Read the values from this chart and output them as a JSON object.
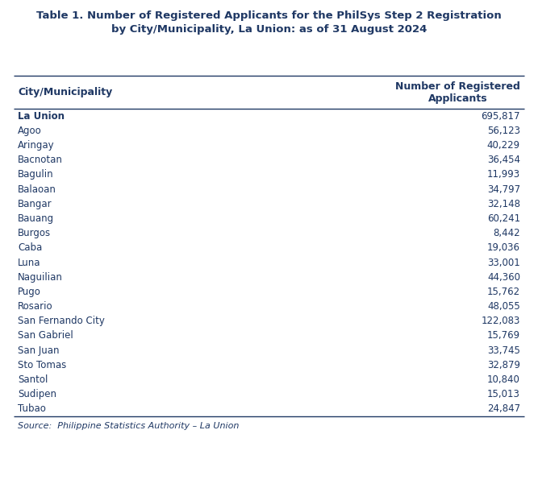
{
  "title_line1": "Table 1. Number of Registered Applicants for the PhilSys Step 2 Registration",
  "title_line2": "by City/Municipality, La Union: as of 31 August 2024",
  "col1_header": "City/Municipality",
  "col2_header": "Number of Registered\nApplicants",
  "rows": [
    [
      "La Union",
      "695,817",
      true
    ],
    [
      "Agoo",
      "56,123",
      false
    ],
    [
      "Aringay",
      "40,229",
      false
    ],
    [
      "Bacnotan",
      "36,454",
      false
    ],
    [
      "Bagulin",
      "11,993",
      false
    ],
    [
      "Balaoan",
      "34,797",
      false
    ],
    [
      "Bangar",
      "32,148",
      false
    ],
    [
      "Bauang",
      "60,241",
      false
    ],
    [
      "Burgos",
      "8,442",
      false
    ],
    [
      "Caba",
      "19,036",
      false
    ],
    [
      "Luna",
      "33,001",
      false
    ],
    [
      "Naguilian",
      "44,360",
      false
    ],
    [
      "Pugo",
      "15,762",
      false
    ],
    [
      "Rosario",
      "48,055",
      false
    ],
    [
      "San Fernando City",
      "122,083",
      false
    ],
    [
      "San Gabriel",
      "15,769",
      false
    ],
    [
      "San Juan",
      "33,745",
      false
    ],
    [
      "Sto Tomas",
      "32,879",
      false
    ],
    [
      "Santol",
      "10,840",
      false
    ],
    [
      "Sudipen",
      "15,013",
      false
    ],
    [
      "Tubao",
      "24,847",
      false
    ]
  ],
  "source": "Source:  Philippine Statistics Authority – La Union",
  "bg_color": "#ffffff",
  "title_color": "#1f3864",
  "header_color": "#1f3864",
  "body_color": "#1f3864",
  "line_color": "#1f3864",
  "title_fontsize": 9.5,
  "header_fontsize": 9.0,
  "body_fontsize": 8.5,
  "source_fontsize": 8.0,
  "fig_width": 6.67,
  "fig_height": 6.06,
  "dpi": 100
}
